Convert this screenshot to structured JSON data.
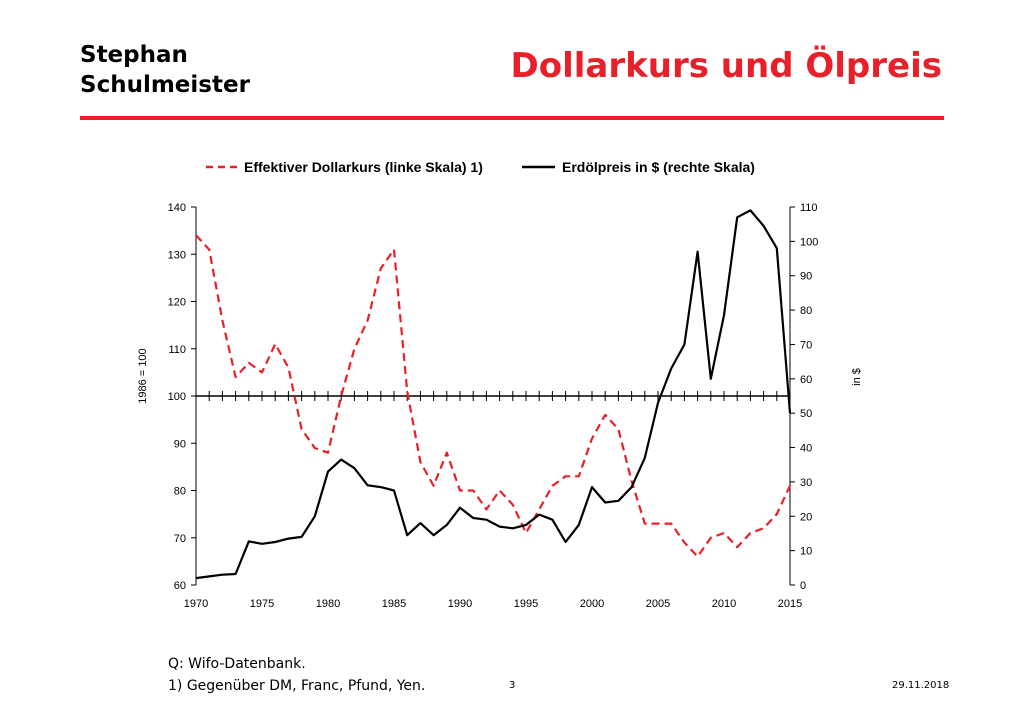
{
  "header": {
    "author_line1": "Stephan",
    "author_line2": "Schulmeister",
    "title": "Dollarkurs und Ölpreis"
  },
  "footer": {
    "source": "Q: Wifo-Datenbank.",
    "note": "1) Gegenüber DM, Franc, Pfund, Yen.",
    "page_number": "3",
    "date": "29.11.2018"
  },
  "colors": {
    "accent": "#e8202a",
    "dollar": "#e8202a",
    "oil": "#000000"
  },
  "chart_data": {
    "type": "line",
    "legend": [
      "Effektiver Dollarkurs (linke Skala) 1)",
      "Erdölpreis in $ (rechte Skala)"
    ],
    "legend_position": "top",
    "ylabel_left": "1986 = 100",
    "ylabel_right": "in $",
    "xlim": [
      1970,
      2015
    ],
    "ylim_left": [
      60,
      140
    ],
    "ylim_right": [
      0,
      110
    ],
    "x_ticks": [
      "1970",
      "1975",
      "1980",
      "1985",
      "1990",
      "1995",
      "2000",
      "2005",
      "2010",
      "2015"
    ],
    "y_ticks_left": [
      "60",
      "70",
      "80",
      "90",
      "100",
      "110",
      "120",
      "130",
      "140"
    ],
    "y_ticks_right": [
      "0",
      "10",
      "20",
      "30",
      "40",
      "50",
      "60",
      "70",
      "80",
      "90",
      "100",
      "110"
    ],
    "baseline_left": 100,
    "grid": false,
    "x": [
      1970,
      1971,
      1972,
      1973,
      1974,
      1975,
      1976,
      1977,
      1978,
      1979,
      1980,
      1981,
      1982,
      1983,
      1984,
      1985,
      1986,
      1987,
      1988,
      1989,
      1990,
      1991,
      1992,
      1993,
      1994,
      1995,
      1996,
      1997,
      1998,
      1999,
      2000,
      2001,
      2002,
      2003,
      2004,
      2005,
      2006,
      2007,
      2008,
      2009,
      2010,
      2011,
      2012,
      2013,
      2014,
      2015
    ],
    "series": [
      {
        "name": "Effektiver Dollarkurs (linke Skala) 1)",
        "axis": "left",
        "style": "dashed",
        "color": "#e8202a",
        "values": [
          134,
          131,
          116,
          104,
          107,
          105,
          111,
          106,
          93,
          89,
          88,
          100,
          110,
          116,
          127,
          131,
          101,
          86,
          81,
          88,
          80,
          80,
          76,
          80,
          77,
          71,
          76,
          81,
          83,
          83,
          91,
          96,
          93,
          82,
          73,
          73,
          73,
          69,
          66,
          70,
          71,
          68,
          71,
          72,
          75,
          81
        ]
      },
      {
        "name": "Erdölpreis in $ (rechte Skala)",
        "axis": "right",
        "style": "solid",
        "color": "#000000",
        "values": [
          2,
          2.5,
          3,
          3.2,
          12.7,
          12,
          12.5,
          13.5,
          14,
          20,
          33,
          36.5,
          34,
          29,
          28.5,
          27.5,
          14.5,
          18,
          14.5,
          17.5,
          22.5,
          19.5,
          19,
          17,
          16.5,
          17.5,
          20.5,
          19,
          12.5,
          17.5,
          28.5,
          24,
          24.5,
          28.5,
          37,
          53,
          63,
          70,
          97,
          60,
          78.5,
          107,
          109,
          104.5,
          98,
          50
        ]
      }
    ]
  }
}
